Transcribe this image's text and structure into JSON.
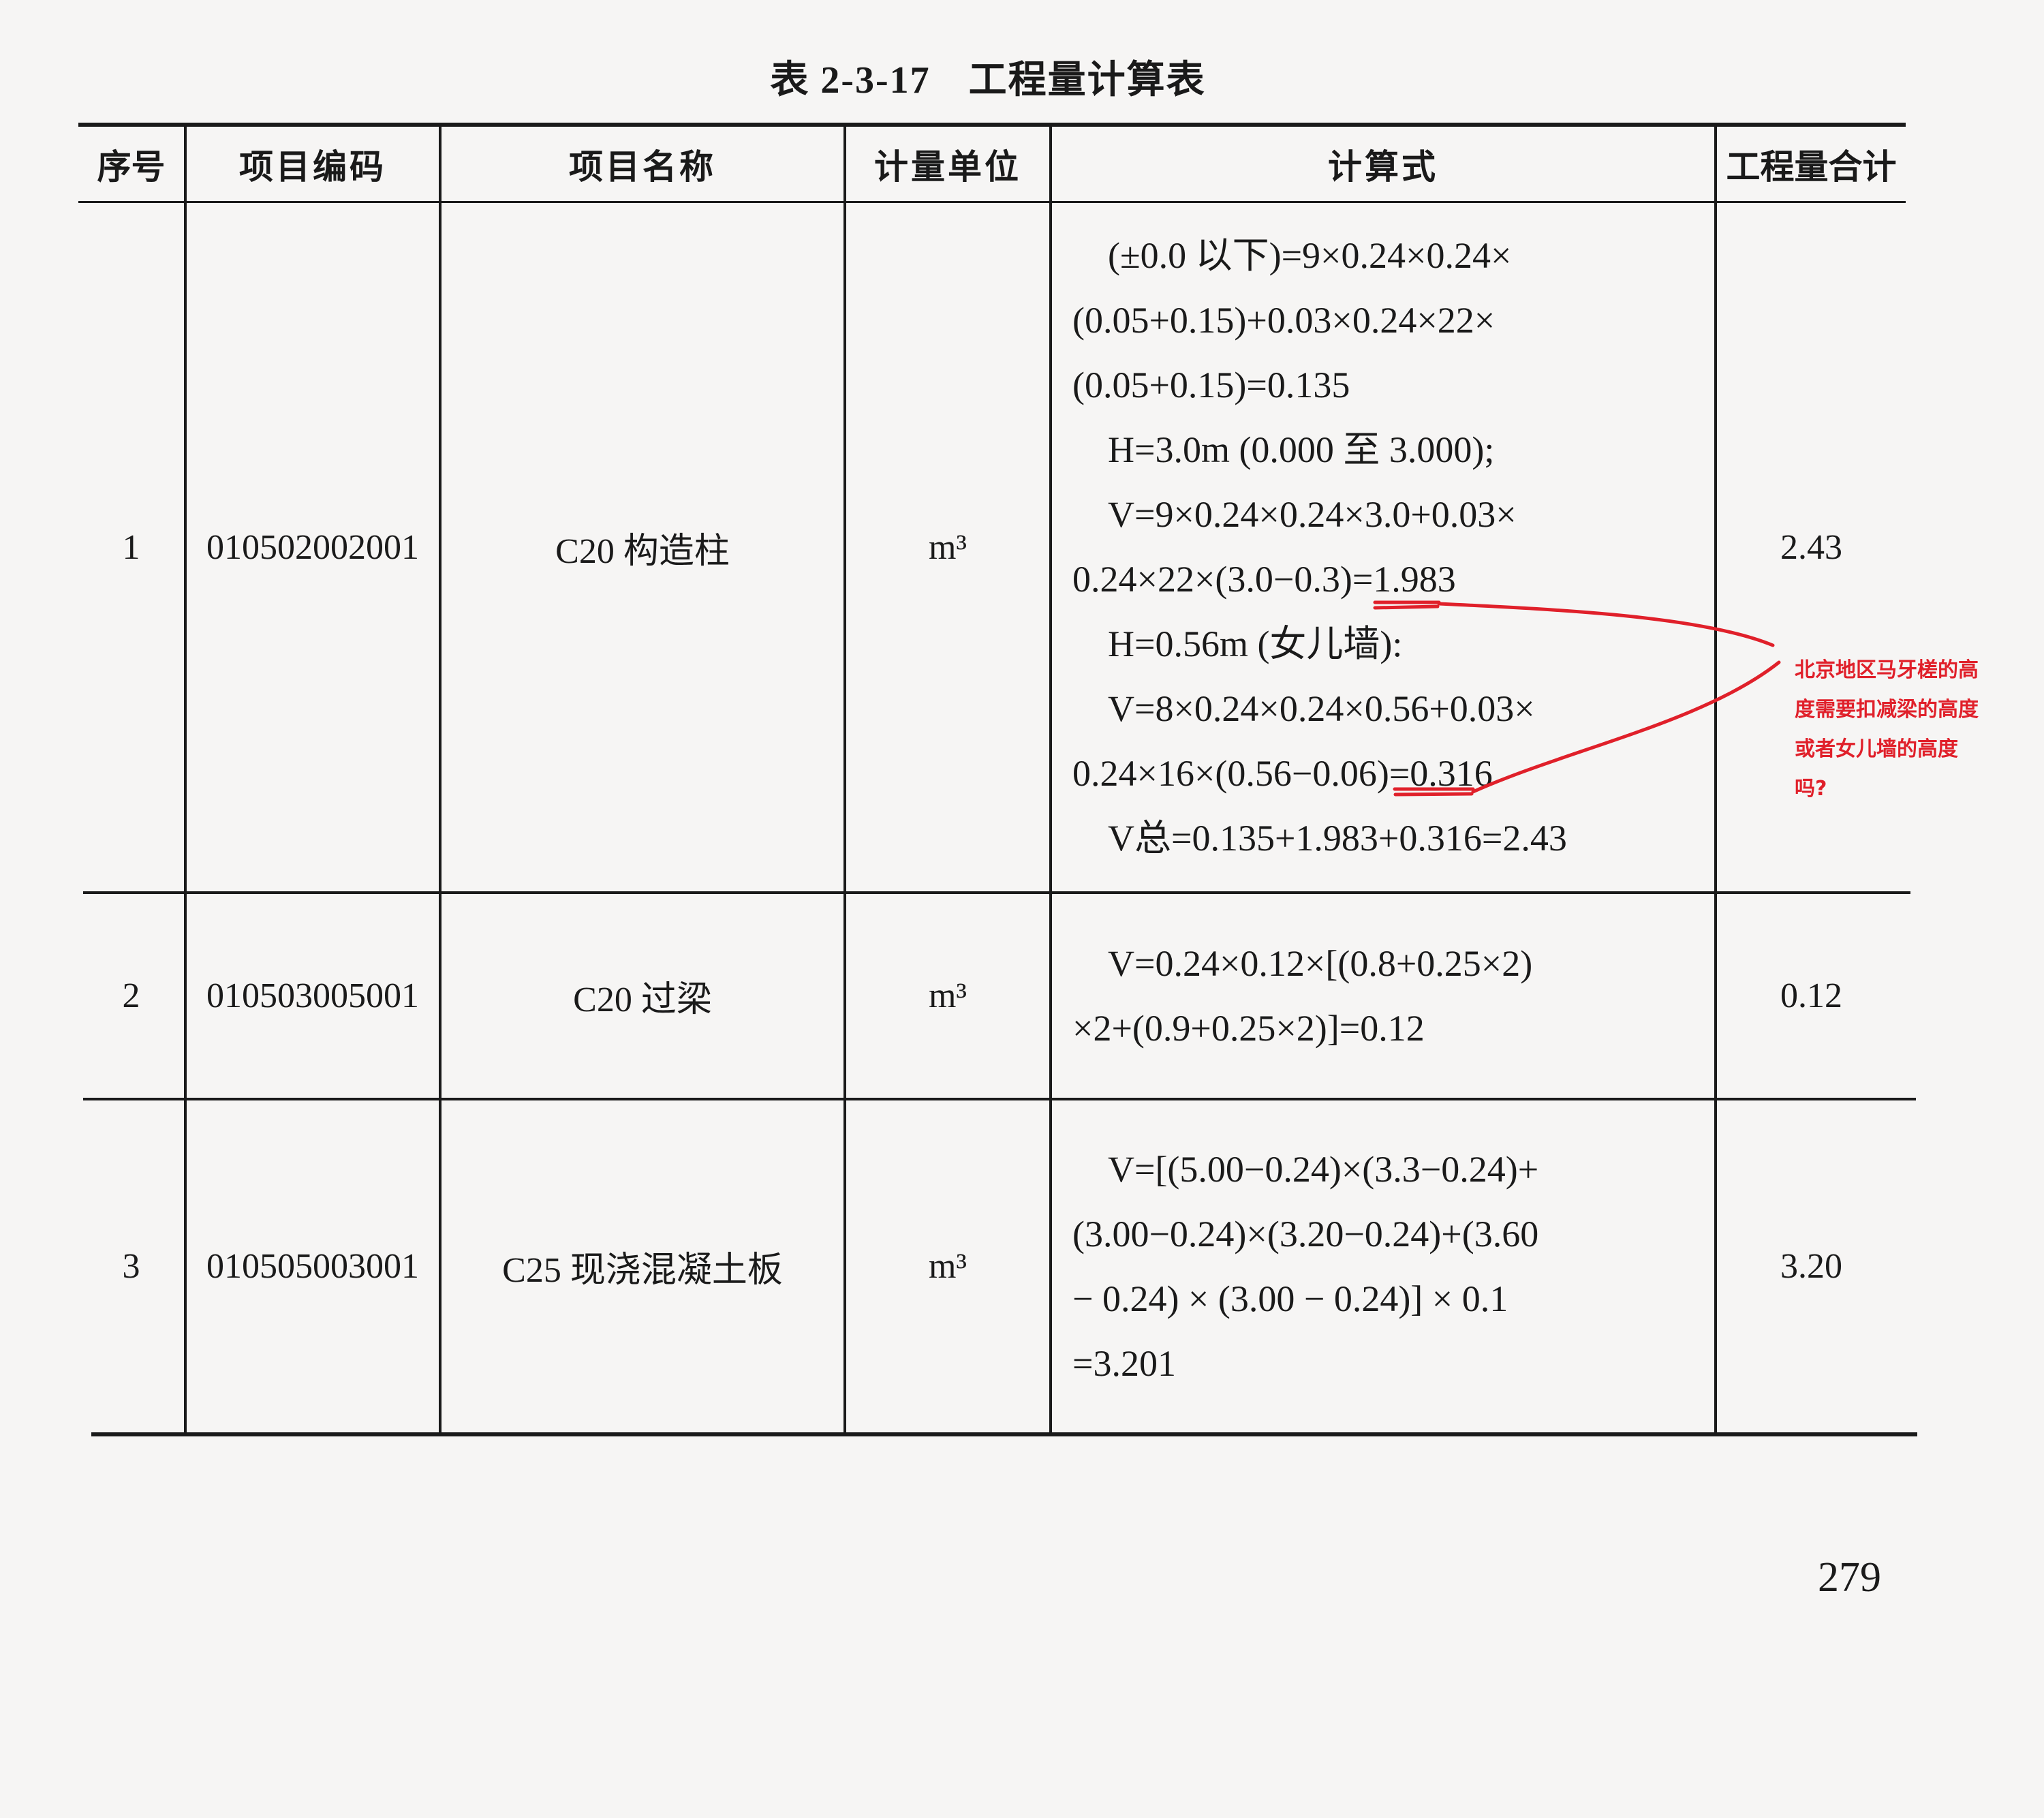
{
  "table": {
    "number": "表 2-3-17",
    "title": "工程量计算表",
    "headers": [
      "序号",
      "项目编码",
      "项目名称",
      "计量单位",
      "计算式",
      "工程量合计"
    ],
    "rows": [
      {
        "index": "1",
        "code": "010502002001",
        "name": "C20 构造柱",
        "unit": "m³",
        "formula": [
          "(±0.0 以下)=9×0.24×0.24×",
          "(0.05+0.15)+0.03×0.24×22×",
          "(0.05+0.15)=0.135",
          "H=3.0m (0.000 至 3.000);",
          "V=9×0.24×0.24×3.0+0.03×",
          "0.24×22×(3.0−0.3)=1.983",
          "H=0.56m (女儿墙):",
          "V=8×0.24×0.24×0.56+0.03×",
          "0.24×16×(0.56−0.06)=0.316",
          "V总=0.135+1.983+0.316=2.43"
        ],
        "total": "2.43"
      },
      {
        "index": "2",
        "code": "010503005001",
        "name": "C20 过梁",
        "unit": "m³",
        "formula": [
          "V=0.24×0.12×[(0.8+0.25×2)",
          "×2+(0.9+0.25×2)]=0.12"
        ],
        "total": "0.12"
      },
      {
        "index": "3",
        "code": "010505003001",
        "name": "C25 现浇混凝土板",
        "unit": "m³",
        "formula": [
          "V=[(5.00−0.24)×(3.3−0.24)+",
          "(3.00−0.24)×(3.20−0.24)+(3.60",
          "− 0.24) × (3.00 − 0.24)] × 0.1",
          "=3.201"
        ],
        "total": "3.20"
      }
    ]
  },
  "annotation": {
    "color": "#e0202a",
    "lines": [
      "北京地区马牙槎的高",
      "度需要扣减梁的高度",
      "或者女儿墙的高度",
      "吗?"
    ]
  },
  "page_number": "279"
}
